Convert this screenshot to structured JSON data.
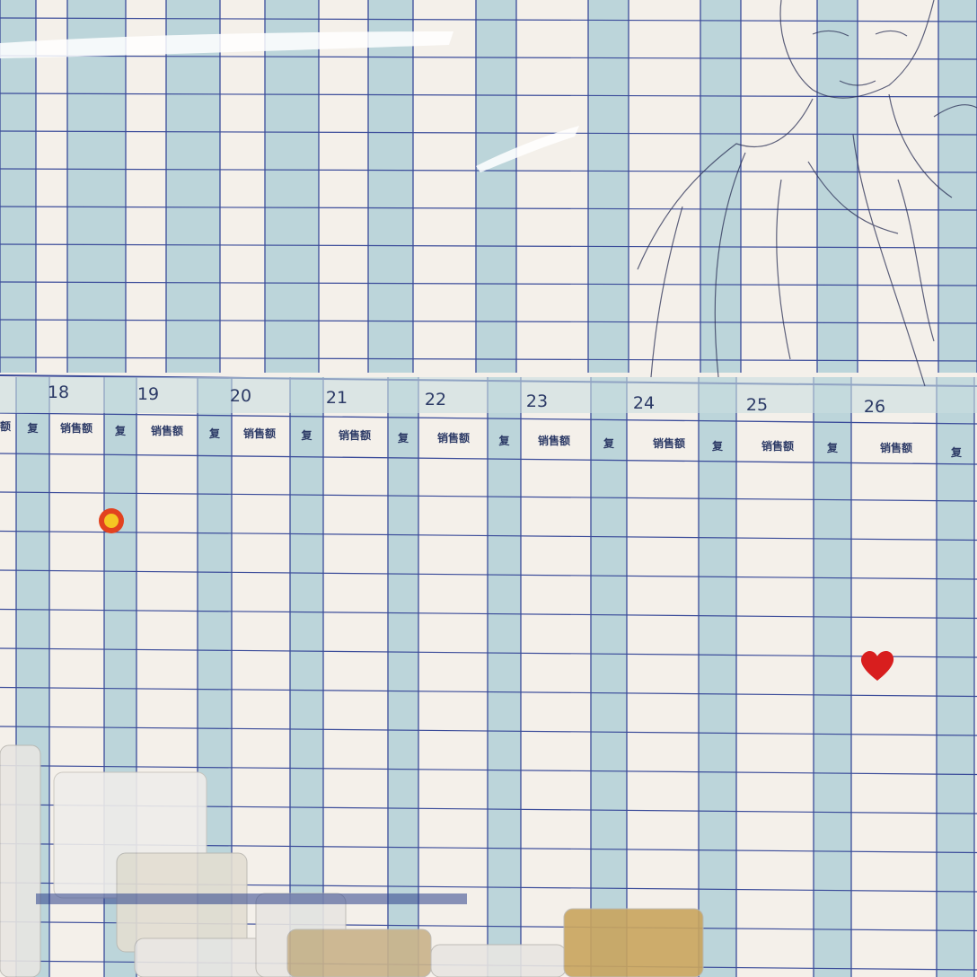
{
  "board": {
    "partial_left_label": "额",
    "days": [
      {
        "day": "18",
        "repeat_label": "复",
        "sales_label": "销售额"
      },
      {
        "day": "19",
        "repeat_label": "复",
        "sales_label": "销售额"
      },
      {
        "day": "20",
        "repeat_label": "复",
        "sales_label": "销售额"
      },
      {
        "day": "21",
        "repeat_label": "复",
        "sales_label": "销售额"
      },
      {
        "day": "22",
        "repeat_label": "复",
        "sales_label": "销售额"
      },
      {
        "day": "23",
        "repeat_label": "复",
        "sales_label": "销售额"
      },
      {
        "day": "24",
        "repeat_label": "复",
        "sales_label": "销售额"
      },
      {
        "day": "25",
        "repeat_label": "复",
        "sales_label": "销售额"
      },
      {
        "day": "26",
        "repeat_label": "复",
        "sales_label": "销售额"
      }
    ],
    "partial_right_label": "复",
    "colors": {
      "grid_line": "#3b4c9a",
      "column_tint": "#bcd5da",
      "board": "#f4f0ea"
    },
    "stickers": [
      "flower-sticker",
      "heart-sticker"
    ]
  }
}
